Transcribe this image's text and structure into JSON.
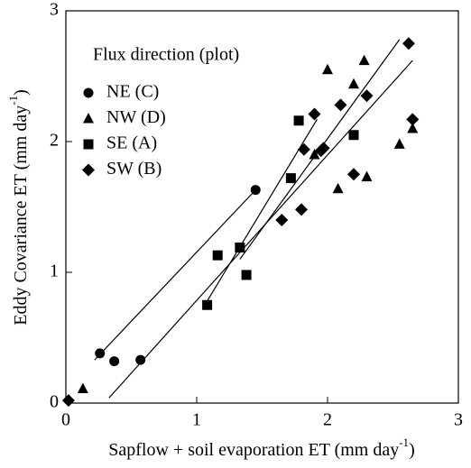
{
  "chart_data": {
    "type": "scatter",
    "x_label": {
      "text": "Sapflow + soil evaporation ET (mm day",
      "sup": "-1",
      "end": ")"
    },
    "y_label": {
      "text": "Eddy Covariance ET (mm day",
      "sup": "-1",
      "end": ")"
    },
    "legend_title": "Flux direction (plot)",
    "legend_position": "upper left",
    "xlim": [
      0,
      3
    ],
    "ylim": [
      0,
      3
    ],
    "xticks": [
      0,
      1,
      2,
      3
    ],
    "yticks": [
      0,
      1,
      2,
      3
    ],
    "series": [
      {
        "name": "NE (C)",
        "marker": "circle",
        "color": "#000000",
        "x": [
          0.26,
          0.37,
          0.57,
          1.45
        ],
        "values": [
          0.38,
          0.32,
          0.33,
          1.63
        ]
      },
      {
        "name": "NW (D)",
        "marker": "triangle",
        "color": "#000000",
        "x": [
          0.13,
          1.9,
          2.0,
          2.08,
          2.2,
          2.28,
          2.3,
          2.55,
          2.65
        ],
        "values": [
          0.11,
          1.9,
          2.55,
          1.64,
          2.44,
          2.62,
          1.73,
          1.98,
          2.1
        ]
      },
      {
        "name": "SE (A)",
        "marker": "square",
        "color": "#000000",
        "x": [
          1.08,
          1.16,
          1.33,
          1.38,
          1.72,
          1.78,
          2.2
        ],
        "values": [
          0.75,
          1.13,
          1.19,
          0.98,
          1.72,
          2.16,
          2.05
        ]
      },
      {
        "name": "SW (B)",
        "marker": "diamond",
        "color": "#000000",
        "x": [
          0.02,
          1.65,
          1.8,
          1.82,
          1.9,
          1.95,
          1.97,
          2.1,
          2.2,
          2.3,
          2.62,
          2.65
        ],
        "values": [
          0.02,
          1.4,
          1.48,
          1.94,
          2.21,
          1.93,
          1.95,
          2.28,
          1.75,
          2.35,
          2.75,
          2.17
        ]
      }
    ],
    "fit_lines": [
      {
        "x": [
          0.22,
          1.45
        ],
        "y": [
          0.33,
          1.63
        ]
      },
      {
        "x": [
          0.33,
          2.65
        ],
        "y": [
          0.04,
          2.62
        ]
      },
      {
        "x": [
          1.08,
          1.92
        ],
        "y": [
          0.78,
          2.17
        ]
      },
      {
        "x": [
          1.33,
          2.55
        ],
        "y": [
          1.1,
          2.78
        ]
      }
    ]
  }
}
